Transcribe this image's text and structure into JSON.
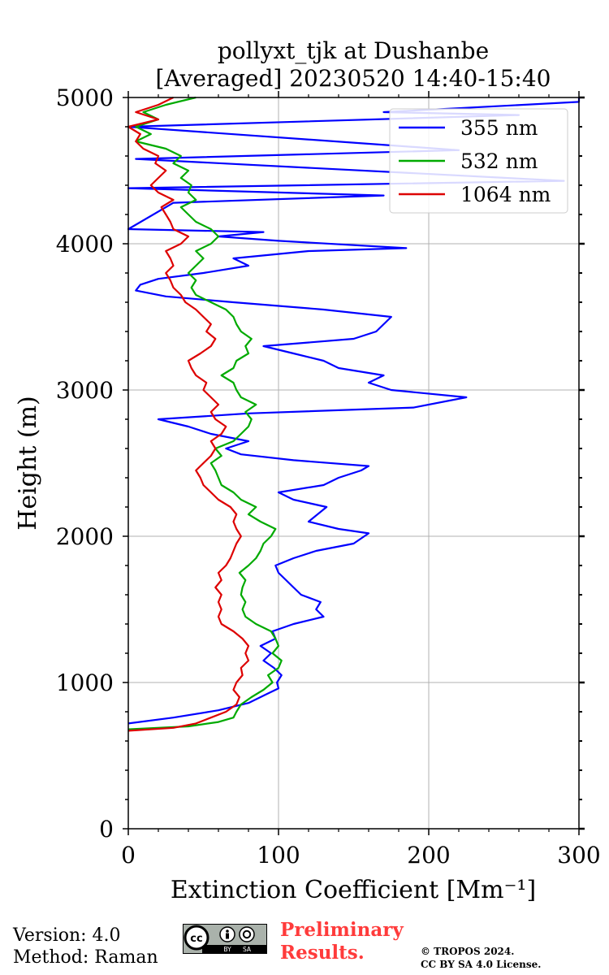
{
  "chart_data": {
    "type": "line",
    "title_line1": "pollyxt_tjk at Dushanbe",
    "title_line2": "[Averaged] 20230520 14:40-15:40",
    "xlabel": "Extinction Coefficient [Mm⁻¹]",
    "ylabel": "Height (m)",
    "xlim": [
      0,
      300
    ],
    "ylim": [
      0,
      5000
    ],
    "x_ticks": [
      "0",
      "100",
      "200",
      "300"
    ],
    "y_ticks": [
      "0",
      "1000",
      "2000",
      "3000",
      "4000",
      "5000"
    ],
    "grid": true,
    "legend_position": "top-right",
    "series": [
      {
        "name": "355 nm",
        "color": "#0000ff",
        "points": [
          [
            0,
            720
          ],
          [
            30,
            760
          ],
          [
            60,
            810
          ],
          [
            80,
            860
          ],
          [
            92,
            920
          ],
          [
            100,
            960
          ],
          [
            99,
            1000
          ],
          [
            102,
            1050
          ],
          [
            97,
            1100
          ],
          [
            90,
            1150
          ],
          [
            95,
            1200
          ],
          [
            88,
            1250
          ],
          [
            98,
            1300
          ],
          [
            96,
            1350
          ],
          [
            110,
            1400
          ],
          [
            130,
            1450
          ],
          [
            125,
            1500
          ],
          [
            128,
            1550
          ],
          [
            115,
            1600
          ],
          [
            110,
            1650
          ],
          [
            105,
            1700
          ],
          [
            100,
            1750
          ],
          [
            98,
            1800
          ],
          [
            110,
            1850
          ],
          [
            125,
            1900
          ],
          [
            150,
            1950
          ],
          [
            160,
            2020
          ],
          [
            140,
            2050
          ],
          [
            120,
            2100
          ],
          [
            132,
            2200
          ],
          [
            110,
            2250
          ],
          [
            100,
            2300
          ],
          [
            130,
            2350
          ],
          [
            140,
            2400
          ],
          [
            155,
            2450
          ],
          [
            160,
            2480
          ],
          [
            110,
            2520
          ],
          [
            75,
            2560
          ],
          [
            65,
            2600
          ],
          [
            80,
            2650
          ],
          [
            55,
            2700
          ],
          [
            40,
            2750
          ],
          [
            20,
            2800
          ],
          [
            80,
            2840
          ],
          [
            190,
            2880
          ],
          [
            225,
            2950
          ],
          [
            175,
            3000
          ],
          [
            160,
            3050
          ],
          [
            170,
            3100
          ],
          [
            140,
            3150
          ],
          [
            130,
            3200
          ],
          [
            110,
            3250
          ],
          [
            90,
            3300
          ],
          [
            150,
            3350
          ],
          [
            165,
            3400
          ],
          [
            175,
            3500
          ],
          [
            130,
            3550
          ],
          [
            70,
            3600
          ],
          [
            25,
            3640
          ],
          [
            5,
            3680
          ],
          [
            8,
            3720
          ],
          [
            20,
            3760
          ],
          [
            50,
            3800
          ],
          [
            80,
            3850
          ],
          [
            70,
            3900
          ],
          [
            120,
            3950
          ],
          [
            185,
            3970
          ],
          [
            100,
            4020
          ],
          [
            60,
            4050
          ],
          [
            90,
            4080
          ],
          [
            0,
            4100
          ],
          [
            30,
            4280
          ],
          [
            170,
            4330
          ],
          [
            0,
            4380
          ],
          [
            290,
            4430
          ],
          [
            5,
            4580
          ],
          [
            220,
            4640
          ],
          [
            0,
            4800
          ],
          [
            260,
            4880
          ],
          [
            170,
            4900
          ],
          [
            300,
            4970
          ],
          [
            300,
            5000
          ]
        ]
      },
      {
        "name": "532 nm",
        "color": "#00aa00",
        "points": [
          [
            0,
            680
          ],
          [
            40,
            700
          ],
          [
            60,
            730
          ],
          [
            70,
            760
          ],
          [
            72,
            800
          ],
          [
            75,
            850
          ],
          [
            82,
            900
          ],
          [
            90,
            950
          ],
          [
            96,
            1000
          ],
          [
            93,
            1050
          ],
          [
            100,
            1100
          ],
          [
            102,
            1150
          ],
          [
            96,
            1200
          ],
          [
            100,
            1250
          ],
          [
            98,
            1300
          ],
          [
            95,
            1350
          ],
          [
            85,
            1400
          ],
          [
            78,
            1450
          ],
          [
            76,
            1500
          ],
          [
            78,
            1550
          ],
          [
            75,
            1600
          ],
          [
            76,
            1650
          ],
          [
            78,
            1700
          ],
          [
            74,
            1750
          ],
          [
            80,
            1800
          ],
          [
            85,
            1850
          ],
          [
            88,
            1900
          ],
          [
            90,
            1950
          ],
          [
            95,
            2000
          ],
          [
            98,
            2050
          ],
          [
            88,
            2100
          ],
          [
            80,
            2150
          ],
          [
            85,
            2200
          ],
          [
            75,
            2250
          ],
          [
            70,
            2300
          ],
          [
            62,
            2350
          ],
          [
            60,
            2400
          ],
          [
            58,
            2450
          ],
          [
            55,
            2500
          ],
          [
            62,
            2550
          ],
          [
            58,
            2600
          ],
          [
            70,
            2650
          ],
          [
            75,
            2700
          ],
          [
            80,
            2750
          ],
          [
            82,
            2800
          ],
          [
            78,
            2850
          ],
          [
            85,
            2900
          ],
          [
            75,
            2950
          ],
          [
            72,
            3000
          ],
          [
            70,
            3050
          ],
          [
            62,
            3100
          ],
          [
            70,
            3150
          ],
          [
            72,
            3200
          ],
          [
            80,
            3250
          ],
          [
            78,
            3300
          ],
          [
            82,
            3350
          ],
          [
            75,
            3400
          ],
          [
            72,
            3450
          ],
          [
            70,
            3500
          ],
          [
            65,
            3550
          ],
          [
            55,
            3600
          ],
          [
            45,
            3650
          ],
          [
            42,
            3700
          ],
          [
            45,
            3750
          ],
          [
            40,
            3800
          ],
          [
            45,
            3850
          ],
          [
            50,
            3900
          ],
          [
            45,
            3950
          ],
          [
            55,
            4000
          ],
          [
            60,
            4050
          ],
          [
            55,
            4100
          ],
          [
            45,
            4150
          ],
          [
            40,
            4200
          ],
          [
            35,
            4250
          ],
          [
            45,
            4300
          ],
          [
            40,
            4350
          ],
          [
            42,
            4400
          ],
          [
            35,
            4450
          ],
          [
            40,
            4500
          ],
          [
            30,
            4550
          ],
          [
            35,
            4600
          ],
          [
            25,
            4650
          ],
          [
            5,
            4700
          ],
          [
            15,
            4750
          ],
          [
            5,
            4800
          ],
          [
            20,
            4850
          ],
          [
            10,
            4900
          ],
          [
            25,
            4950
          ],
          [
            45,
            5000
          ]
        ]
      },
      {
        "name": "1064 nm",
        "color": "#dd0000",
        "points": [
          [
            0,
            670
          ],
          [
            30,
            690
          ],
          [
            45,
            720
          ],
          [
            55,
            760
          ],
          [
            65,
            800
          ],
          [
            72,
            850
          ],
          [
            74,
            900
          ],
          [
            70,
            950
          ],
          [
            72,
            1000
          ],
          [
            76,
            1050
          ],
          [
            75,
            1100
          ],
          [
            80,
            1150
          ],
          [
            78,
            1200
          ],
          [
            80,
            1250
          ],
          [
            76,
            1300
          ],
          [
            70,
            1350
          ],
          [
            62,
            1400
          ],
          [
            60,
            1450
          ],
          [
            62,
            1500
          ],
          [
            60,
            1550
          ],
          [
            62,
            1600
          ],
          [
            58,
            1650
          ],
          [
            62,
            1700
          ],
          [
            60,
            1750
          ],
          [
            65,
            1800
          ],
          [
            68,
            1850
          ],
          [
            70,
            1900
          ],
          [
            72,
            1950
          ],
          [
            75,
            2000
          ],
          [
            72,
            2050
          ],
          [
            70,
            2100
          ],
          [
            72,
            2150
          ],
          [
            68,
            2200
          ],
          [
            60,
            2250
          ],
          [
            55,
            2300
          ],
          [
            50,
            2350
          ],
          [
            48,
            2400
          ],
          [
            45,
            2450
          ],
          [
            50,
            2500
          ],
          [
            55,
            2550
          ],
          [
            58,
            2600
          ],
          [
            55,
            2650
          ],
          [
            62,
            2700
          ],
          [
            65,
            2750
          ],
          [
            58,
            2800
          ],
          [
            55,
            2850
          ],
          [
            60,
            2900
          ],
          [
            55,
            2950
          ],
          [
            50,
            3000
          ],
          [
            52,
            3050
          ],
          [
            45,
            3100
          ],
          [
            42,
            3150
          ],
          [
            40,
            3200
          ],
          [
            48,
            3250
          ],
          [
            55,
            3300
          ],
          [
            58,
            3350
          ],
          [
            52,
            3400
          ],
          [
            55,
            3450
          ],
          [
            50,
            3500
          ],
          [
            45,
            3550
          ],
          [
            38,
            3600
          ],
          [
            35,
            3650
          ],
          [
            30,
            3700
          ],
          [
            28,
            3750
          ],
          [
            25,
            3800
          ],
          [
            30,
            3850
          ],
          [
            28,
            3900
          ],
          [
            25,
            3950
          ],
          [
            35,
            4000
          ],
          [
            40,
            4050
          ],
          [
            30,
            4100
          ],
          [
            28,
            4150
          ],
          [
            25,
            4200
          ],
          [
            22,
            4250
          ],
          [
            30,
            4300
          ],
          [
            20,
            4350
          ],
          [
            15,
            4400
          ],
          [
            20,
            4450
          ],
          [
            25,
            4500
          ],
          [
            18,
            4550
          ],
          [
            20,
            4600
          ],
          [
            10,
            4650
          ],
          [
            5,
            4700
          ],
          [
            8,
            4750
          ],
          [
            0,
            4800
          ],
          [
            20,
            4850
          ],
          [
            5,
            4900
          ],
          [
            20,
            4950
          ],
          [
            30,
            5000
          ]
        ]
      }
    ]
  },
  "footer": {
    "version": "Version: 4.0",
    "method": "Method: Raman",
    "preliminary_line1": "Preliminary",
    "preliminary_line2": "Results.",
    "copyright_line1": "© TROPOS 2024.",
    "copyright_line2": "CC BY SA 4.0 License.",
    "license_badge": {
      "cc": "cc",
      "by": "BY",
      "sa": "SA",
      "icon": "cc-by-sa-license-icon"
    }
  }
}
